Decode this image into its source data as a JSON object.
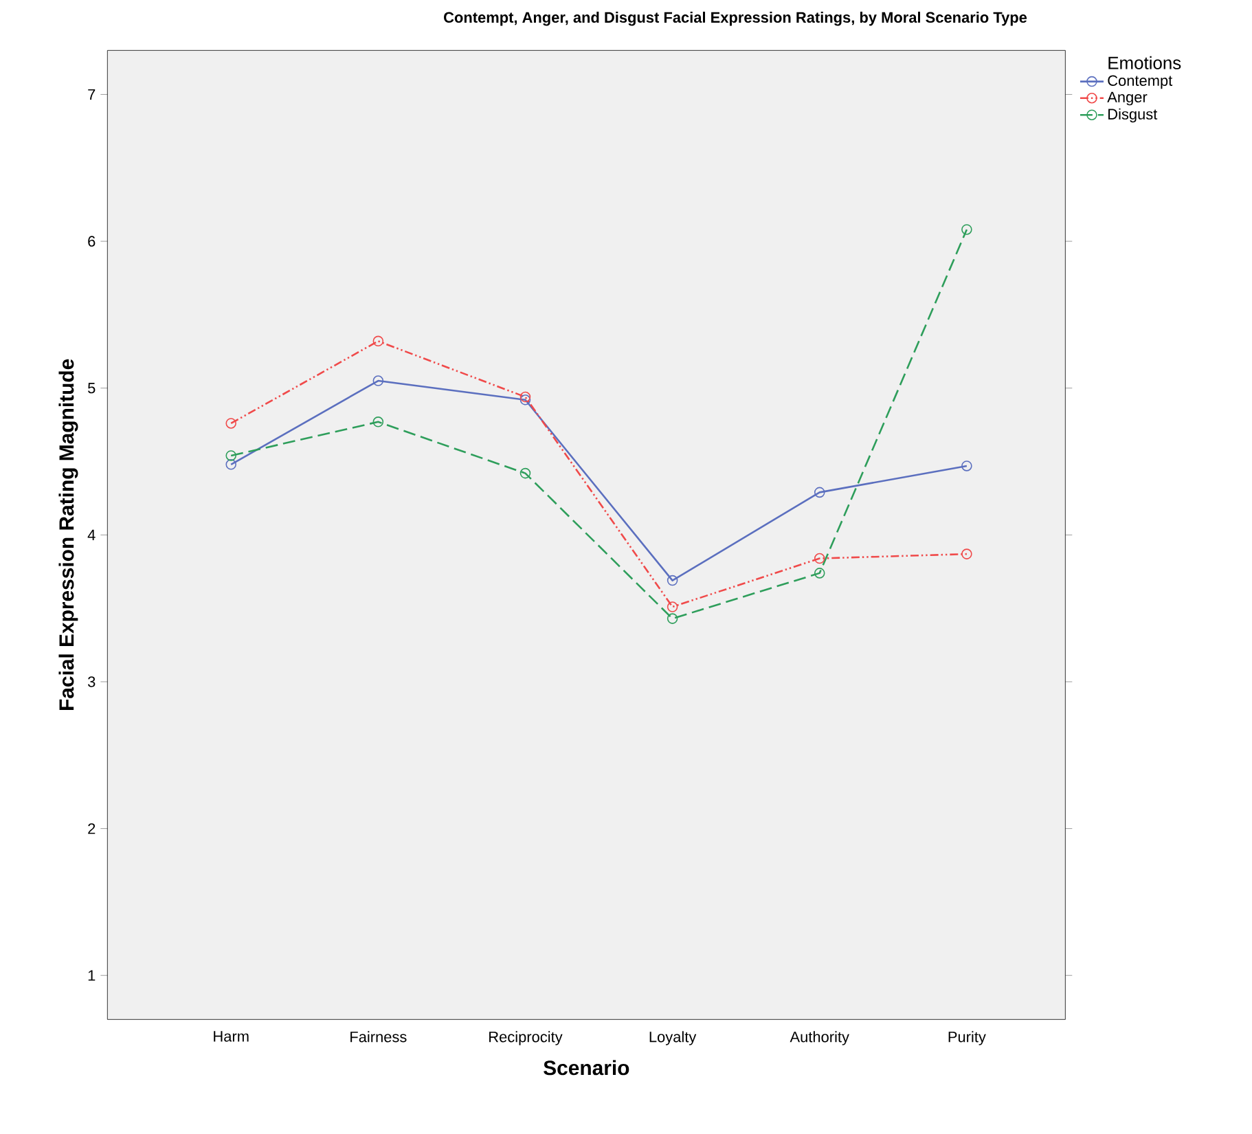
{
  "chart_data": {
    "type": "line",
    "title": "Contempt, Anger, and Disgust Facial Expression Ratings, by Moral Scenario Type",
    "xlabel": "Scenario",
    "ylabel": "Facial Expression Rating Magnitude",
    "legend_title": "Emotions",
    "categories": [
      "Harm",
      "Fairness",
      "Reciprocity",
      "Loyalty",
      "Authority",
      "Purity"
    ],
    "series": [
      {
        "name": "Contempt",
        "color": "#5b6fbf",
        "line_style": "solid",
        "values": [
          4.48,
          5.05,
          4.92,
          3.69,
          4.29,
          4.47
        ]
      },
      {
        "name": "Anger",
        "color": "#f04a4a",
        "line_style": "dashdotdot",
        "values": [
          4.76,
          5.32,
          4.94,
          3.51,
          3.84,
          3.87
        ]
      },
      {
        "name": "Disgust",
        "color": "#2e9e5b",
        "line_style": "dashed",
        "values": [
          4.54,
          4.77,
          4.42,
          3.43,
          3.74,
          6.08
        ]
      }
    ],
    "ylim": [
      0.7,
      7.3
    ],
    "yticks": [
      1,
      2,
      3,
      4,
      5,
      6,
      7
    ],
    "marker": "circle",
    "grid": false,
    "legend": "top right"
  }
}
